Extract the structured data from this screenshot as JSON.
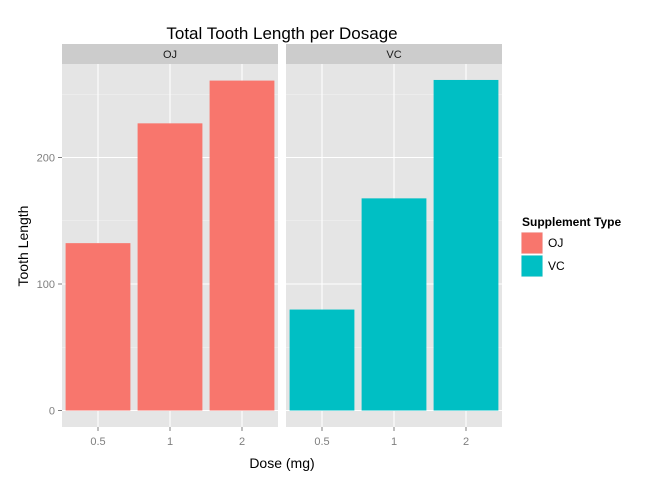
{
  "chart_data": {
    "type": "bar",
    "title": "Total Tooth Length per Dosage",
    "xlabel": "Dose (mg)",
    "ylabel": "Tooth Length",
    "categories": [
      "0.5",
      "1",
      "2"
    ],
    "ylim": [
      0,
      275
    ],
    "yticks": [
      0,
      100,
      200
    ],
    "grid": true,
    "facets": [
      {
        "label": "OJ",
        "series": "OJ",
        "values": [
          132.3,
          227.0,
          260.8
        ]
      },
      {
        "label": "VC",
        "series": "VC",
        "values": [
          79.8,
          167.7,
          261.3
        ]
      }
    ],
    "legend": {
      "title": "Supplement Type",
      "placement": "right",
      "items": [
        {
          "label": "OJ",
          "color": "#F8766D"
        },
        {
          "label": "VC",
          "color": "#00BFC4"
        }
      ]
    }
  }
}
